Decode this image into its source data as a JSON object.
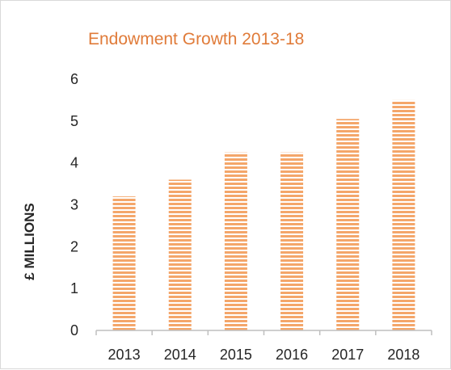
{
  "chart_data": {
    "type": "bar",
    "title": "Endowment Growth 2013-18",
    "xlabel": "",
    "ylabel": "£ MILLIONS",
    "categories": [
      "2013",
      "2014",
      "2015",
      "2016",
      "2017",
      "2018"
    ],
    "values": [
      3.2,
      3.6,
      4.25,
      4.25,
      5.05,
      5.5
    ],
    "ylim": [
      0,
      6
    ],
    "yticks": [
      0,
      1,
      2,
      3,
      4,
      5,
      6
    ],
    "grid": false,
    "legend": "none",
    "colors": {
      "bar": "#f4a66a",
      "bar_stripe": "#ffffff",
      "title": "#e07b39",
      "axis": "#bfbfbf",
      "text": "#262626"
    }
  }
}
